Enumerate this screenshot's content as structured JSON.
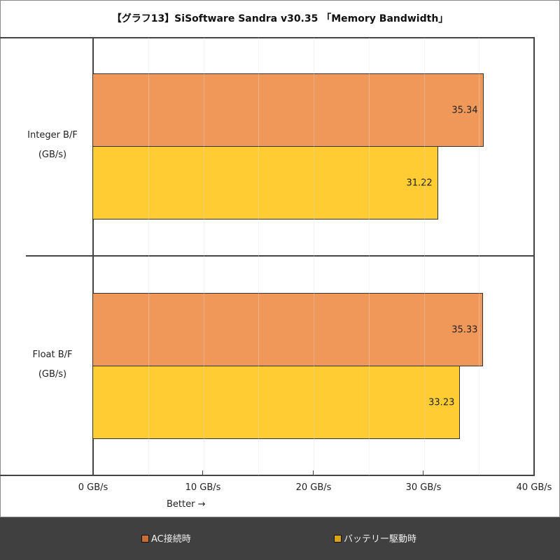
{
  "title": "【グラフ13】SiSoftware Sandra v30.35 「Memory Bandwidth」",
  "chart_data": {
    "type": "bar",
    "orientation": "horizontal",
    "title": "【グラフ13】SiSoftware Sandra v30.35 「Memory Bandwidth」",
    "categories": [
      {
        "line1": "Integer B/F",
        "line2": "(GB/s)"
      },
      {
        "line1": "Float B/F",
        "line2": "(GB/s)"
      }
    ],
    "series": [
      {
        "name": "AC接続時",
        "color": "#F0985A",
        "legend_color": "#C96E32",
        "values": [
          35.34,
          35.33
        ],
        "labels": [
          "35.34",
          "35.33"
        ]
      },
      {
        "name": "バッテリー駆動時",
        "color": "#FFCC33",
        "legend_color": "#D9A514",
        "values": [
          31.22,
          33.23
        ],
        "labels": [
          "31.22",
          "33.23"
        ]
      }
    ],
    "xlim": [
      0,
      40
    ],
    "xticks": [
      "0 GB/s",
      "10 GB/s",
      "20 GB/s",
      "30 GB/s",
      "40 GB/s"
    ],
    "minor_grid_every": 5,
    "xlabel_note": "Better →",
    "grid": true,
    "legend_position": "bottom"
  },
  "legend": {
    "items": [
      {
        "label": "AC接続時",
        "color": "#C96E32"
      },
      {
        "label": "バッテリー駆動時",
        "color": "#D9A514"
      }
    ]
  }
}
